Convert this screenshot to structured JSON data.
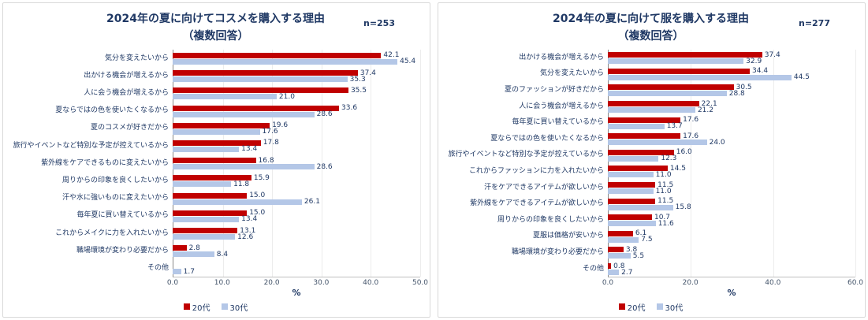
{
  "colors": {
    "title_text": "#1F3864",
    "label_text": "#1F3864",
    "value_text": "#1F3864",
    "tick_text": "#44546A",
    "series_20dai": "#C00000",
    "series_30dai": "#B4C7E7",
    "card_border": "#D9D9D9"
  },
  "chart_data": [
    {
      "type": "bar",
      "orientation": "horizontal",
      "title": "2024年の夏に向けてコスメを購入する理由",
      "subtitle": "（複数回答）",
      "sample_label": "n=253",
      "categories": [
        "気分を変えたいから",
        "出かける機会が増えるから",
        "人に会う機会が増えるから",
        "夏ならではの色を使いたくなるから",
        "夏のコスメが好きだから",
        "旅行やイベントなど特別な予定が控えているから",
        "紫外線をケアできるものに変えたいから",
        "周りからの印象を良くしたいから",
        "汗や水に強いものに変えたいから",
        "毎年夏に買い替えているから",
        "これからメイクに力を入れたいから",
        "職場環境が変わり必要だから",
        "その他"
      ],
      "series": [
        {
          "name": "20代",
          "color": "#C00000",
          "values": [
            42.1,
            37.4,
            35.5,
            33.6,
            19.6,
            17.8,
            16.8,
            15.9,
            15.0,
            15.0,
            13.1,
            2.8,
            0
          ]
        },
        {
          "name": "30代",
          "color": "#B4C7E7",
          "values": [
            45.4,
            35.3,
            21.0,
            28.6,
            17.6,
            13.4,
            28.6,
            11.8,
            26.1,
            13.4,
            12.6,
            8.4,
            1.7
          ]
        }
      ],
      "xlabel": "%",
      "xlim": [
        0,
        50
      ],
      "xticks": [
        "0.0",
        "10.0",
        "20.0",
        "30.0",
        "40.0",
        "50.0"
      ],
      "legend_position": "bottom",
      "grid": true
    },
    {
      "type": "bar",
      "orientation": "horizontal",
      "title": "2024年の夏に向けて服を購入する理由",
      "subtitle": "（複数回答）",
      "sample_label": "n=277",
      "categories": [
        "出かける機会が増えるから",
        "気分を変えたいから",
        "夏のファッションが好きだから",
        "人に会う機会が増えるから",
        "毎年夏に買い替えているから",
        "夏ならではの色を使いたくなるから",
        "旅行やイベントなど特別な予定が控えているから",
        "これからファッションに力を入れたいから",
        "汗をケアできるアイテムが欲しいから",
        "紫外線をケアできるアイテムが欲しいから",
        "周りからの印象を良くしたいから",
        "夏服は価格が安いから",
        "職場環境が変わり必要だから",
        "その他"
      ],
      "series": [
        {
          "name": "20代",
          "color": "#C00000",
          "values": [
            37.4,
            34.4,
            30.5,
            22.1,
            17.6,
            17.6,
            16.0,
            14.5,
            11.5,
            11.5,
            10.7,
            6.1,
            3.8,
            0.8
          ]
        },
        {
          "name": "30代",
          "color": "#B4C7E7",
          "values": [
            32.9,
            44.5,
            28.8,
            21.2,
            13.7,
            24.0,
            12.3,
            11.0,
            11.0,
            15.8,
            11.6,
            7.5,
            5.5,
            2.7
          ]
        }
      ],
      "xlabel": "%",
      "xlim": [
        0,
        60
      ],
      "xticks": [
        "0.0",
        "20.0",
        "40.0",
        "60.0"
      ],
      "legend_position": "bottom",
      "grid": true
    }
  ]
}
